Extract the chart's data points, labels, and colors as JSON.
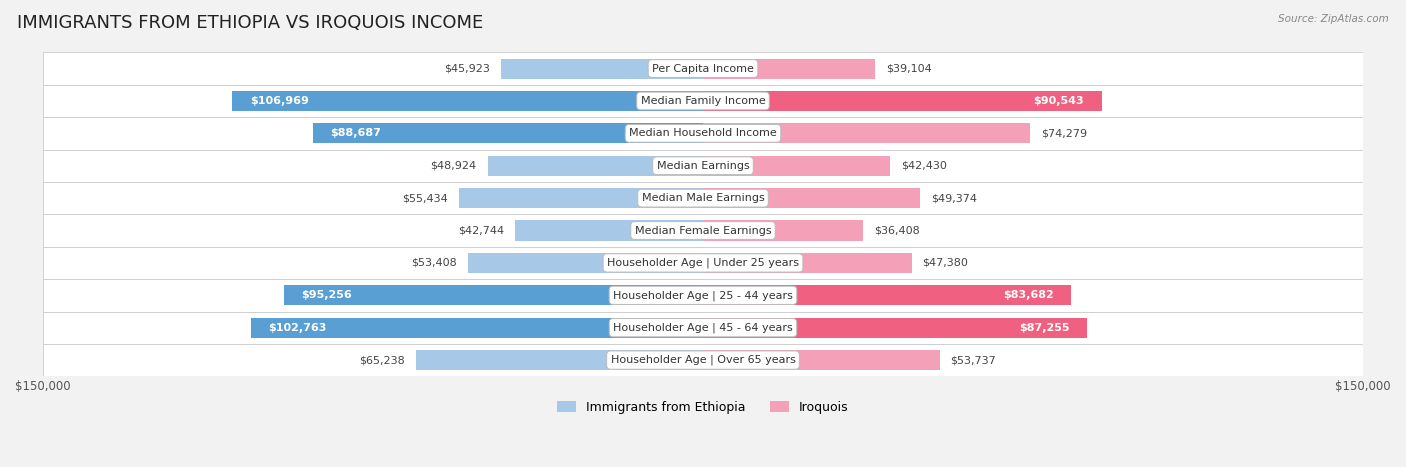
{
  "title": "IMMIGRANTS FROM ETHIOPIA VS IROQUOIS INCOME",
  "source": "Source: ZipAtlas.com",
  "categories": [
    "Per Capita Income",
    "Median Family Income",
    "Median Household Income",
    "Median Earnings",
    "Median Male Earnings",
    "Median Female Earnings",
    "Householder Age | Under 25 years",
    "Householder Age | 25 - 44 years",
    "Householder Age | 45 - 64 years",
    "Householder Age | Over 65 years"
  ],
  "ethiopia_values": [
    45923,
    106969,
    88687,
    48924,
    55434,
    42744,
    53408,
    95256,
    102763,
    65238
  ],
  "iroquois_values": [
    39104,
    90543,
    74279,
    42430,
    49374,
    36408,
    47380,
    83682,
    87255,
    53737
  ],
  "ethiopia_color_light": "#A8C8E8",
  "ethiopia_color_dark": "#5A9FD4",
  "iroquois_color_light": "#F4A0B8",
  "iroquois_color_dark": "#F06080",
  "max_value": 150000,
  "bg_color": "#f2f2f2",
  "row_bg": "#ffffff",
  "title_fontsize": 13,
  "label_fontsize": 8,
  "value_fontsize": 8,
  "legend_fontsize": 9,
  "axis_label_fontsize": 8.5
}
